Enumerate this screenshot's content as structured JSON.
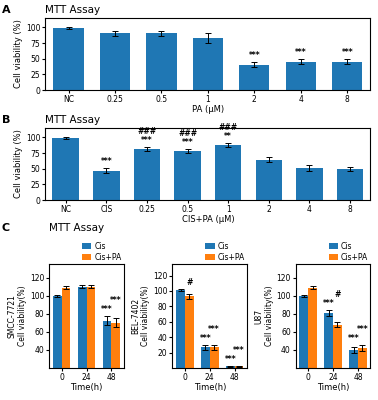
{
  "chart_data": [
    {
      "type": "bar",
      "title": "MTT Assay",
      "xlabel": "PA (μM)",
      "ylabel": "Cell viability (%)",
      "categories": [
        "NC",
        "0.25",
        "0.5",
        "1",
        "2",
        "4",
        "8"
      ],
      "values": [
        99,
        91,
        91,
        83,
        40,
        45,
        45
      ],
      "errors": [
        1,
        4,
        4,
        8,
        4,
        4,
        4
      ],
      "ylim": [
        0,
        115
      ],
      "yticks": [
        0,
        25,
        50,
        75,
        100
      ],
      "annotations": [
        {
          "text": "A"
        },
        {
          "category": "2",
          "text": "***"
        },
        {
          "category": "4",
          "text": "***"
        },
        {
          "category": "8",
          "text": "***"
        }
      ]
    },
    {
      "type": "bar",
      "title": "MTT Assay",
      "xlabel": "CIS+PA (μM)",
      "ylabel": "Cell viability (%)",
      "categories": [
        "NC",
        "CIS",
        "0.25",
        "0.5",
        "1",
        "2",
        "4",
        "8"
      ],
      "values": [
        99,
        47,
        82,
        78,
        88,
        64,
        51,
        49
      ],
      "errors": [
        1,
        4,
        3,
        3,
        3,
        4,
        5,
        3
      ],
      "ylim": [
        0,
        115
      ],
      "yticks": [
        0,
        25,
        50,
        75,
        100
      ],
      "annotations": [
        {
          "text": "B"
        },
        {
          "category": "CIS",
          "text": "***"
        },
        {
          "category": "0.25",
          "text": "***"
        },
        {
          "category": "0.25",
          "text": "###"
        },
        {
          "category": "0.5",
          "text": "***"
        },
        {
          "category": "0.5",
          "text": "###"
        },
        {
          "category": "1",
          "text": "**"
        },
        {
          "category": "1",
          "text": "###"
        }
      ]
    },
    {
      "type": "bar",
      "title": "MTT Assay",
      "xlabel": "Time(h)",
      "ylabel": "SMCC-7721\nCell viability(%)",
      "categories": [
        "0",
        "24",
        "48"
      ],
      "series": [
        {
          "name": "Cis",
          "values": [
            100,
            110,
            72
          ],
          "errors": [
            1,
            2,
            5
          ]
        },
        {
          "name": "Cis+PA",
          "values": [
            109,
            110,
            70
          ],
          "errors": [
            2,
            2,
            5
          ]
        }
      ],
      "ylim": [
        20,
        135
      ],
      "yticks": [
        40,
        60,
        80,
        100,
        120
      ],
      "legend": "upper right",
      "annotations": [
        {
          "text": "C"
        },
        {
          "category": "48",
          "series": "Cis",
          "text": "***"
        },
        {
          "category": "48",
          "series": "Cis+PA",
          "text": "***"
        }
      ]
    },
    {
      "type": "bar",
      "xlabel": "Time(h)",
      "ylabel": "BEL-7402\nCell viability(%)",
      "categories": [
        "0",
        "24",
        "48"
      ],
      "series": [
        {
          "name": "Cis",
          "values": [
            101,
            27,
            2
          ],
          "errors": [
            1,
            3,
            1
          ]
        },
        {
          "name": "Cis+PA",
          "values": [
            93,
            27,
            2
          ],
          "errors": [
            3,
            3,
            1
          ]
        }
      ],
      "ylim": [
        0,
        135
      ],
      "yticks": [
        20,
        40,
        60,
        80,
        100,
        120
      ],
      "legend": "upper right",
      "annotations": [
        {
          "category": "0",
          "series": "Cis+PA",
          "text": "#"
        },
        {
          "category": "24",
          "series": "Cis",
          "text": "***"
        },
        {
          "category": "24",
          "series": "Cis+PA",
          "text": "***"
        },
        {
          "category": "48",
          "series": "Cis",
          "text": "***"
        },
        {
          "category": "48",
          "series": "Cis+PA",
          "text": "***"
        }
      ]
    },
    {
      "type": "bar",
      "xlabel": "Time(h)",
      "ylabel": "U87\nCell viability(%)",
      "categories": [
        "0",
        "24",
        "48"
      ],
      "series": [
        {
          "name": "Cis",
          "values": [
            100,
            81,
            40
          ],
          "errors": [
            1,
            3,
            3
          ]
        },
        {
          "name": "Cis+PA",
          "values": [
            109,
            68,
            42
          ],
          "errors": [
            2,
            3,
            3
          ]
        }
      ],
      "ylim": [
        20,
        135
      ],
      "yticks": [
        40,
        60,
        80,
        100,
        120
      ],
      "legend": "upper right",
      "annotations": [
        {
          "category": "24",
          "series": "Cis",
          "text": "***"
        },
        {
          "category": "24",
          "series": "Cis+PA",
          "text": "#"
        },
        {
          "category": "48",
          "series": "Cis",
          "text": "***"
        },
        {
          "category": "48",
          "series": "Cis+PA",
          "text": "***"
        }
      ]
    }
  ]
}
